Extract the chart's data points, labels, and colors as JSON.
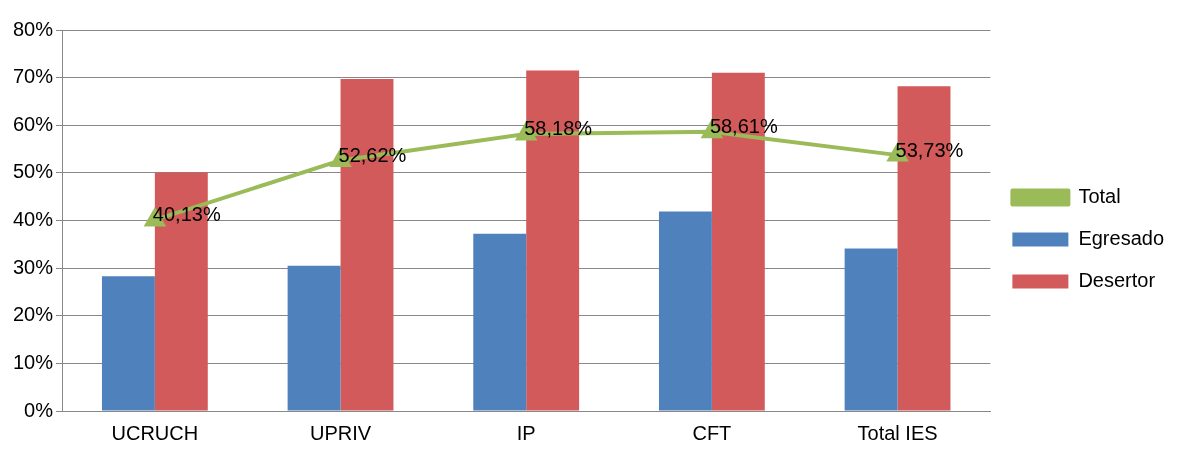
{
  "chart_data": {
    "type": "bar",
    "categories": [
      "UCRUCH",
      "UPRIV",
      "IP",
      "CFT",
      "Total IES"
    ],
    "series": [
      {
        "name": "Egresado",
        "color": "#4f81bd",
        "values": [
          28.3,
          30.5,
          37.2,
          41.9,
          34.1
        ]
      },
      {
        "name": "Desertor",
        "color": "#d35a5a",
        "values": [
          50.1,
          69.7,
          71.5,
          71.0,
          68.2
        ]
      },
      {
        "name": "Total",
        "type": "line",
        "color": "#9bbb59",
        "marker": "triangle",
        "values": [
          40.13,
          52.62,
          58.18,
          58.61,
          53.73
        ],
        "value_labels": [
          "40,13%",
          "52,62%",
          "58,18%",
          "58,61%",
          "53,73%"
        ]
      }
    ],
    "ylim": [
      0,
      80
    ],
    "yticks": [
      {
        "value": 0,
        "label": "0%"
      },
      {
        "value": 10,
        "label": "10%"
      },
      {
        "value": 20,
        "label": "20%"
      },
      {
        "value": 30,
        "label": "30%"
      },
      {
        "value": 40,
        "label": "40%"
      },
      {
        "value": 50,
        "label": "50%"
      },
      {
        "value": 60,
        "label": "60%"
      },
      {
        "value": 70,
        "label": "70%"
      },
      {
        "value": 80,
        "label": "80%"
      }
    ],
    "grid": "y",
    "legend": "right"
  }
}
